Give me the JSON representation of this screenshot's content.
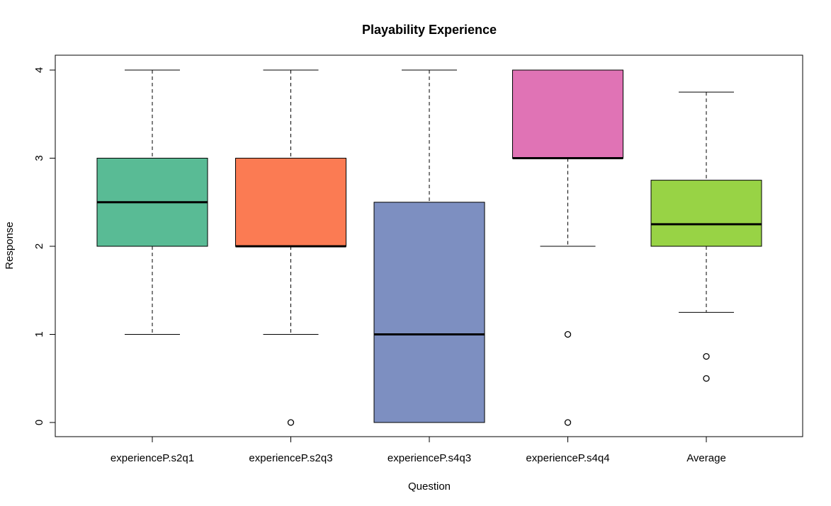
{
  "chart_data": {
    "type": "box",
    "title": "Playability Experience",
    "xlabel": "Question",
    "ylabel": "Response",
    "ylim": [
      -0.15,
      4.15
    ],
    "yticks": [
      0,
      1,
      2,
      3,
      4
    ],
    "grid": false,
    "categories": [
      "experienceP.s2q1",
      "experienceP.s2q3",
      "experienceP.s4q3",
      "experienceP.s4q4",
      "Average"
    ],
    "boxes": [
      {
        "category": "experienceP.s2q1",
        "whisker_low": 1,
        "q1": 2,
        "median": 2.5,
        "q3": 3,
        "whisker_high": 4,
        "outliers": [],
        "color": "#59BB95"
      },
      {
        "category": "experienceP.s2q3",
        "whisker_low": 1,
        "q1": 2,
        "median": 2,
        "q3": 3,
        "whisker_high": 4,
        "outliers": [
          0
        ],
        "color": "#FB7B53"
      },
      {
        "category": "experienceP.s4q3",
        "whisker_low": 0,
        "q1": 0,
        "median": 1,
        "q3": 2.5,
        "whisker_high": 4,
        "outliers": [],
        "color": "#7D8FC1"
      },
      {
        "category": "experienceP.s4q4",
        "whisker_low": 2,
        "q1": 3,
        "median": 3,
        "q3": 4,
        "whisker_high": 4,
        "outliers": [
          1,
          0
        ],
        "color": "#E073B5"
      },
      {
        "category": "Average",
        "whisker_low": 1.25,
        "q1": 2,
        "median": 2.25,
        "q3": 2.75,
        "whisker_high": 3.75,
        "outliers": [
          0.75,
          0.5
        ],
        "color": "#98D345"
      }
    ]
  }
}
